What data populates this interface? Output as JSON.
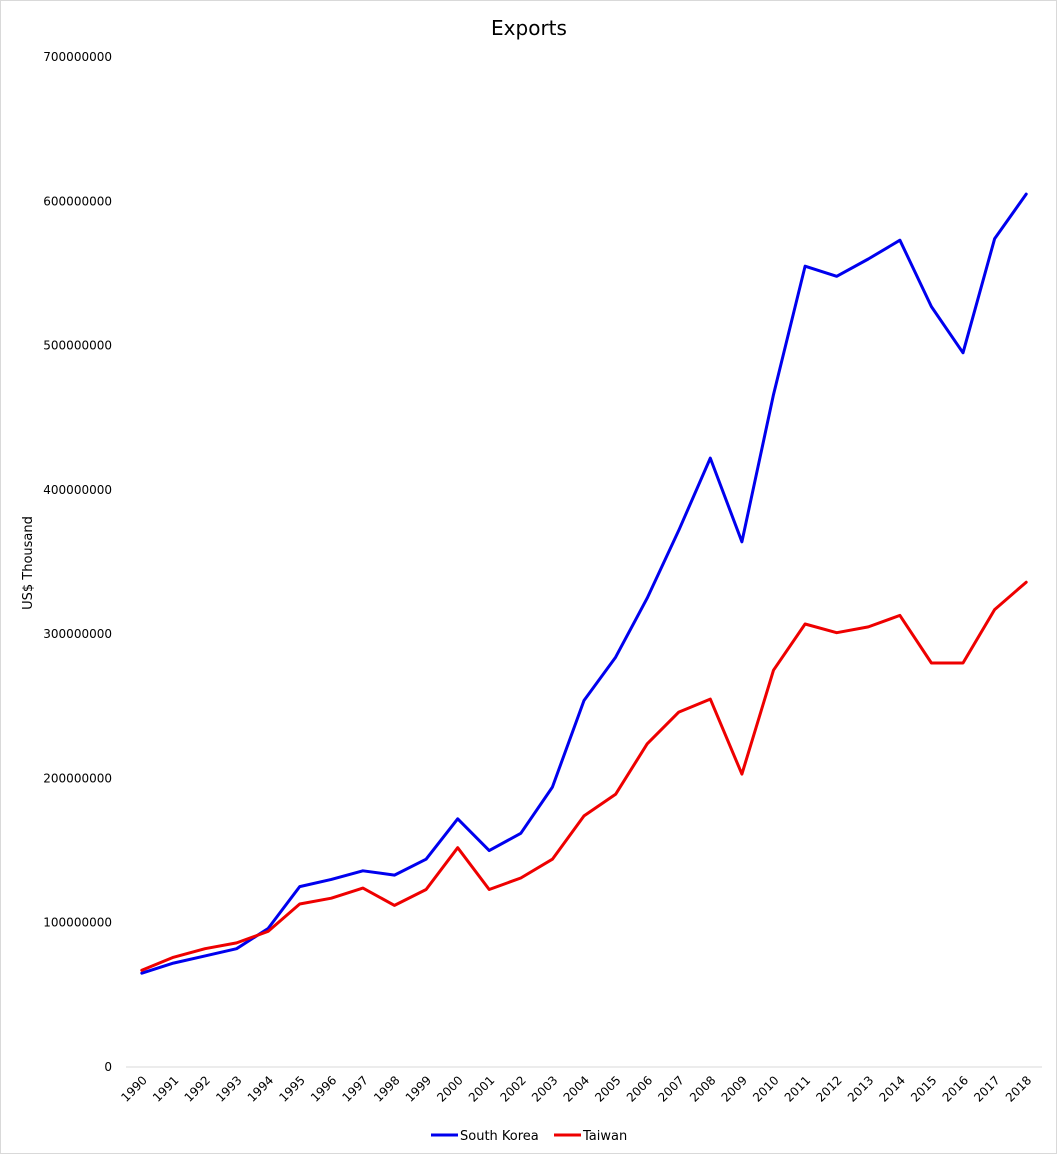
{
  "chart_data": {
    "type": "line",
    "title": "Exports",
    "xlabel": "",
    "ylabel": "US$ Thousand",
    "ylim": [
      0,
      700000000
    ],
    "yticks": [
      0,
      100000000,
      200000000,
      300000000,
      400000000,
      500000000,
      600000000,
      700000000
    ],
    "grid": false,
    "legend": "bottom",
    "categories": [
      "1990",
      "1991",
      "1992",
      "1993",
      "1994",
      "1995",
      "1996",
      "1997",
      "1998",
      "1999",
      "2000",
      "2001",
      "2002",
      "2003",
      "2004",
      "2005",
      "2006",
      "2007",
      "2008",
      "2009",
      "2010",
      "2011",
      "2012",
      "2013",
      "2014",
      "2015",
      "2016",
      "2017",
      "2018"
    ],
    "series": [
      {
        "name": "South Korea",
        "color": "#0000ee",
        "values": [
          65000000,
          72000000,
          77000000,
          82000000,
          96000000,
          125000000,
          130000000,
          136000000,
          133000000,
          144000000,
          172000000,
          150000000,
          162000000,
          194000000,
          254000000,
          284000000,
          325000000,
          372000000,
          422000000,
          364000000,
          466000000,
          555000000,
          548000000,
          560000000,
          573000000,
          527000000,
          495000000,
          574000000,
          605000000
        ]
      },
      {
        "name": "Taiwan",
        "color": "#ee0000",
        "values": [
          67000000,
          76000000,
          82000000,
          86000000,
          94000000,
          113000000,
          117000000,
          124000000,
          112000000,
          123000000,
          152000000,
          123000000,
          131000000,
          144000000,
          174000000,
          189000000,
          224000000,
          246000000,
          255000000,
          203000000,
          275000000,
          307000000,
          301000000,
          305000000,
          313000000,
          280000000,
          280000000,
          317000000,
          336000000
        ]
      }
    ]
  }
}
